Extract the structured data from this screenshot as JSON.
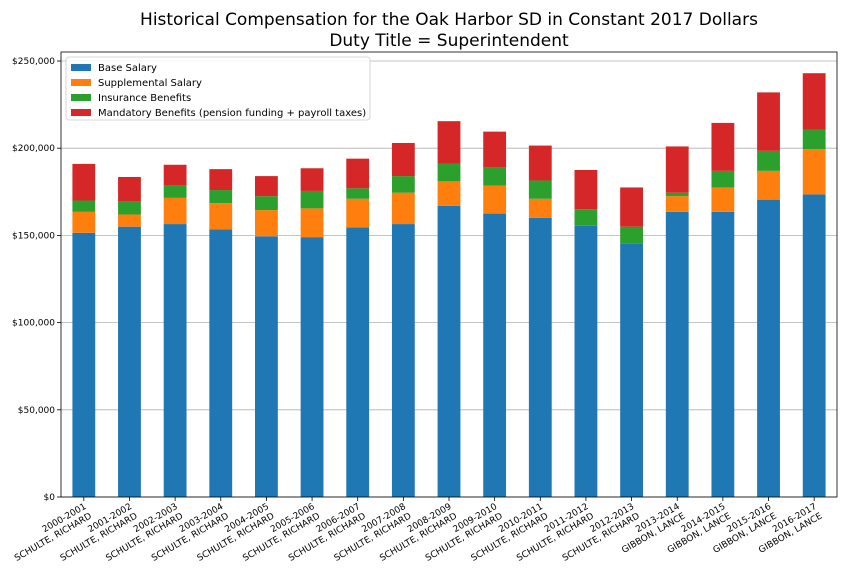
{
  "chart_data": {
    "type": "bar",
    "stacked": true,
    "title": "Historical Compensation for the Oak Harbor SD in Constant 2017 Dollars",
    "subtitle": "Duty Title = Superintendent",
    "xlabel": "",
    "ylabel": "",
    "ylim": [
      0,
      250000
    ],
    "yticks": [
      "$0",
      "$50,000",
      "$100,000",
      "$150,000",
      "$200,000",
      "$250,000"
    ],
    "grid": "horizontal",
    "legend_position": "top-left",
    "categories": [
      {
        "year": "2000-2001",
        "name": "SCHULTE, RICHARD"
      },
      {
        "year": "2001-2002",
        "name": "SCHULTE, RICHARD"
      },
      {
        "year": "2002-2003",
        "name": "SCHULTE, RICHARD"
      },
      {
        "year": "2003-2004",
        "name": "SCHULTE, RICHARD"
      },
      {
        "year": "2004-2005",
        "name": "SCHULTE, RICHARD"
      },
      {
        "year": "2005-2006",
        "name": "SCHULTE, RICHARD"
      },
      {
        "year": "2006-2007",
        "name": "SCHULTE, RICHARD"
      },
      {
        "year": "2007-2008",
        "name": "SCHULTE, RICHARD"
      },
      {
        "year": "2008-2009",
        "name": "SCHULTE, RICHARD"
      },
      {
        "year": "2009-2010",
        "name": "SCHULTE, RICHARD"
      },
      {
        "year": "2010-2011",
        "name": "SCHULTE, RICHARD"
      },
      {
        "year": "2011-2012",
        "name": "SCHULTE, RICHARD"
      },
      {
        "year": "2012-2013",
        "name": "SCHULTE, RICHARD"
      },
      {
        "year": "2013-2014",
        "name": "GIBBON, LANCE"
      },
      {
        "year": "2014-2015",
        "name": "GIBBON, LANCE"
      },
      {
        "year": "2015-2016",
        "name": "GIBBON, LANCE"
      },
      {
        "year": "2016-2017",
        "name": "GIBBON, LANCE"
      }
    ],
    "series": [
      {
        "name": "Base Salary",
        "color": "#1f77b4",
        "values": [
          151500,
          155000,
          156500,
          153500,
          149500,
          149000,
          154500,
          156500,
          167000,
          162500,
          160000,
          155500,
          145500,
          163500,
          163500,
          170500,
          173500
        ]
      },
      {
        "name": "Supplemental Salary",
        "color": "#ff7f0e",
        "values": [
          12000,
          7000,
          15000,
          15000,
          15000,
          16500,
          16500,
          18000,
          14000,
          16000,
          11000,
          0,
          0,
          9000,
          14000,
          16500,
          26000
        ]
      },
      {
        "name": "Insurance Benefits",
        "color": "#2ca02c",
        "values": [
          6500,
          7500,
          7000,
          7500,
          8000,
          10000,
          6000,
          9500,
          10000,
          10500,
          10500,
          9500,
          9500,
          2000,
          9500,
          11500,
          11000
        ]
      },
      {
        "name": "Mandatory Benefits (pension funding + payroll taxes)",
        "color": "#d62728",
        "values": [
          21000,
          14000,
          12000,
          12000,
          11500,
          13000,
          17000,
          19000,
          24500,
          20500,
          20000,
          22500,
          22500,
          26500,
          27500,
          33500,
          32500
        ]
      }
    ]
  }
}
